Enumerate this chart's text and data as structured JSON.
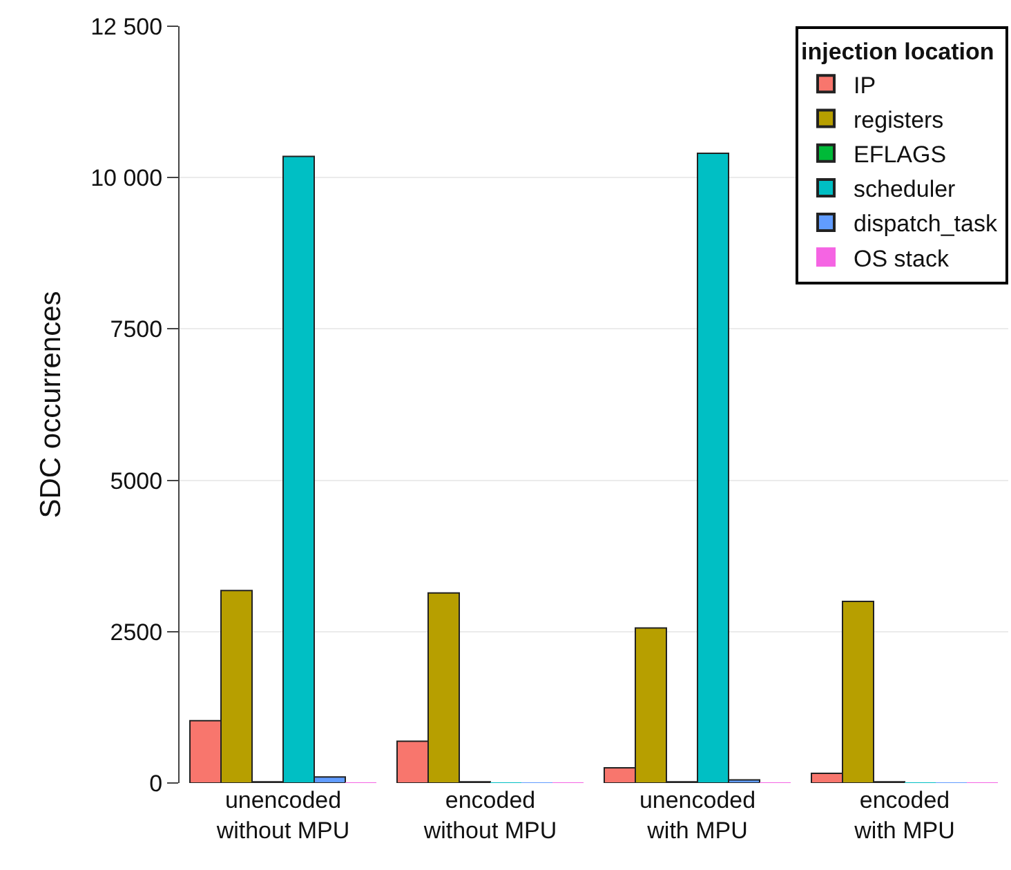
{
  "chart_data": {
    "type": "bar",
    "ylabel": "SDC occurrences",
    "legend_title": "injection location",
    "legend": "top right",
    "grid": "y",
    "categories": [
      "unencoded\nwithout MPU",
      "encoded\nwithout MPU",
      "unencoded\nwith MPU",
      "encoded\nwith MPU"
    ],
    "ylim": [
      0,
      12500
    ],
    "yticks": [
      0,
      2500,
      5000,
      7500,
      {
        "value": 10000,
        "label": "10 000"
      },
      {
        "value": 12500,
        "label": "12 500"
      }
    ],
    "series": [
      {
        "name": "IP",
        "color": "#f8766d",
        "values": [
          1030,
          690,
          250,
          160
        ]
      },
      {
        "name": "registers",
        "color": "#b79f00",
        "values": [
          3180,
          3140,
          2560,
          3000
        ]
      },
      {
        "name": "EFLAGS",
        "color": "#00ba38",
        "values": [
          20,
          20,
          20,
          20
        ]
      },
      {
        "name": "scheduler",
        "color": "#00bfc4",
        "values": [
          10350,
          0,
          10400,
          0
        ]
      },
      {
        "name": "dispatch_task",
        "color": "#619cff",
        "values": [
          100,
          0,
          50,
          0
        ]
      },
      {
        "name": "OS stack",
        "color": "#f564e3",
        "values": [
          0,
          0,
          0,
          0
        ]
      }
    ]
  }
}
